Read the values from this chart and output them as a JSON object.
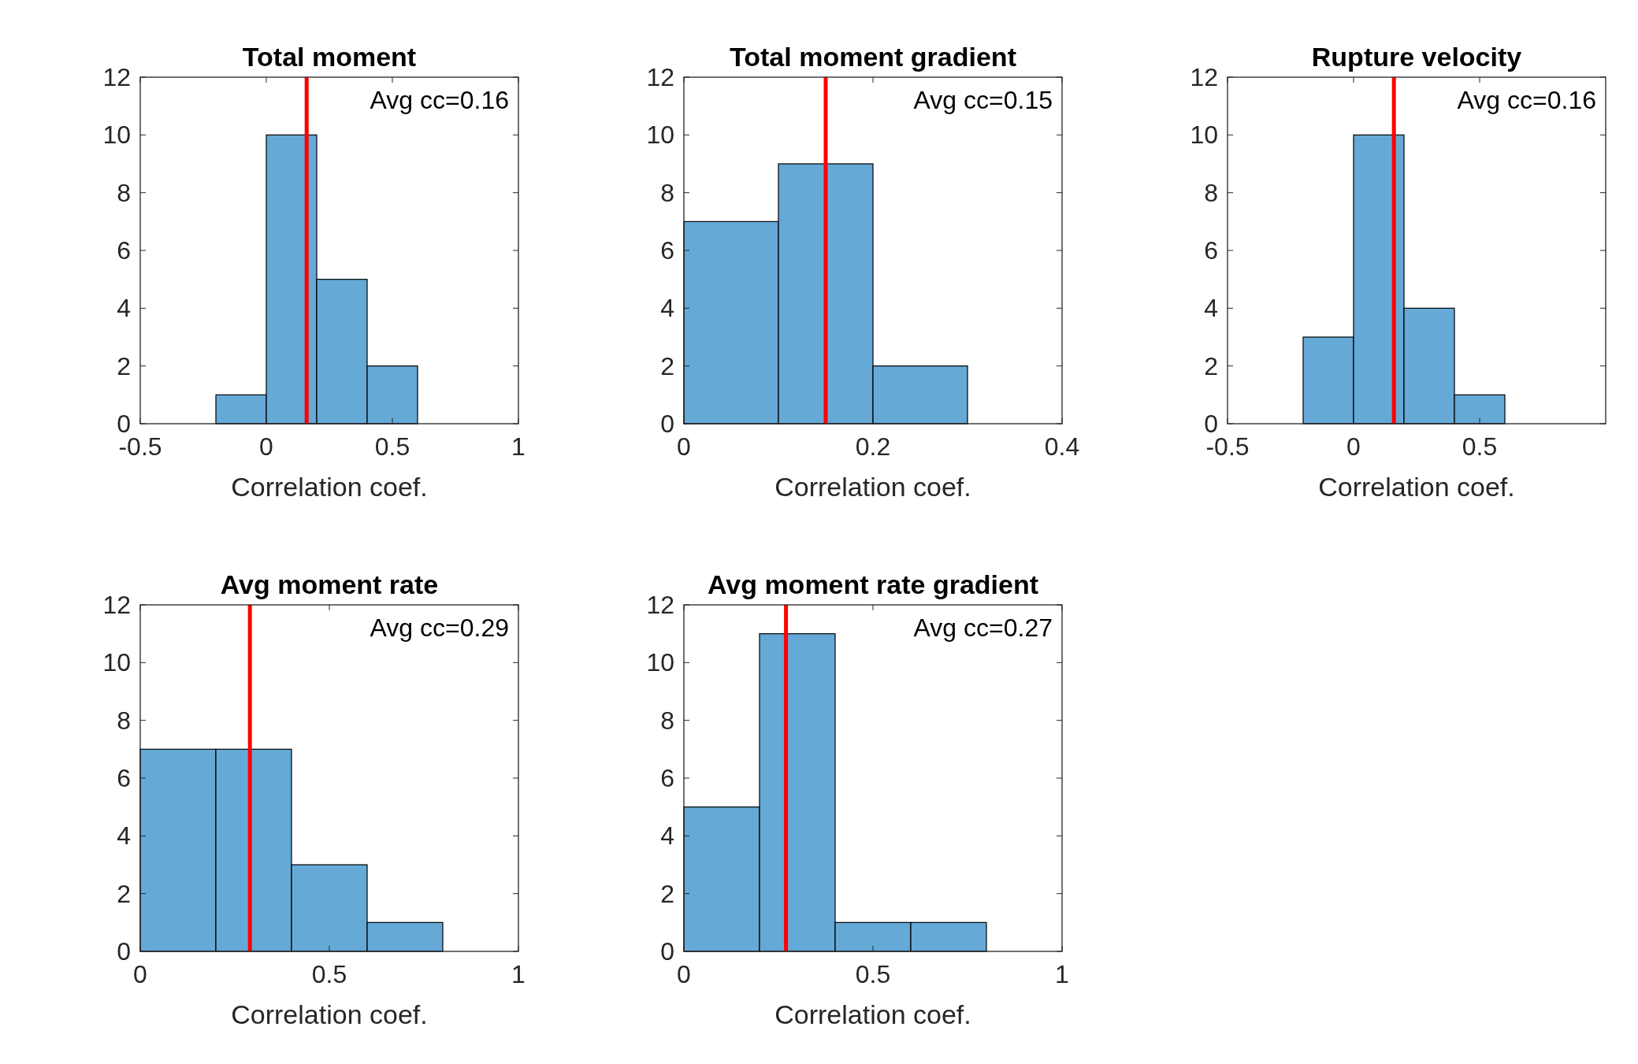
{
  "chart_data": [
    {
      "type": "histogram",
      "title": "Total moment",
      "xlabel": "Correlation coef.",
      "bins": [
        -0.2,
        0,
        0.2,
        0.4,
        0.6
      ],
      "values": [
        1,
        10,
        5,
        2
      ],
      "color": "#65a9d7",
      "xlim": [
        -0.5,
        1
      ],
      "xticks": [
        -0.5,
        0,
        0.5,
        1
      ],
      "ylim": [
        0,
        12
      ],
      "yticks": [
        0,
        2,
        4,
        6,
        8,
        10,
        12
      ],
      "grid": false,
      "ref_lines": [
        {
          "axis": "x",
          "value": 0.16,
          "color": "#ff0000"
        }
      ],
      "annotations": [
        "Avg cc=0.16"
      ]
    },
    {
      "type": "histogram",
      "title": "Total moment gradient",
      "xlabel": "Correlation coef.",
      "bins": [
        0,
        0.1,
        0.2,
        0.3
      ],
      "values": [
        7,
        9,
        2
      ],
      "color": "#65a9d7",
      "xlim": [
        0,
        0.4
      ],
      "xticks": [
        0,
        0.2,
        0.4
      ],
      "ylim": [
        0,
        12
      ],
      "yticks": [
        0,
        2,
        4,
        6,
        8,
        10,
        12
      ],
      "grid": false,
      "ref_lines": [
        {
          "axis": "x",
          "value": 0.15,
          "color": "#ff0000"
        }
      ],
      "annotations": [
        "Avg cc=0.15"
      ]
    },
    {
      "type": "histogram",
      "title": "Rupture velocity",
      "xlabel": "Correlation coef.",
      "bins": [
        -0.2,
        0,
        0.2,
        0.4,
        0.6
      ],
      "values": [
        3,
        10,
        4,
        1
      ],
      "color": "#65a9d7",
      "xlim": [
        -0.5,
        1
      ],
      "xticks": [
        -0.5,
        0,
        0.5
      ],
      "ylim": [
        0,
        12
      ],
      "yticks": [
        0,
        2,
        4,
        6,
        8,
        10,
        12
      ],
      "grid": false,
      "ref_lines": [
        {
          "axis": "x",
          "value": 0.16,
          "color": "#ff0000"
        }
      ],
      "annotations": [
        "Avg cc=0.16"
      ]
    },
    {
      "type": "histogram",
      "title": "Avg moment rate",
      "xlabel": "Correlation coef.",
      "bins": [
        0,
        0.2,
        0.4,
        0.6,
        0.8
      ],
      "values": [
        7,
        7,
        3,
        1
      ],
      "color": "#65a9d7",
      "xlim": [
        0,
        1
      ],
      "xticks": [
        0,
        0.5,
        1
      ],
      "ylim": [
        0,
        12
      ],
      "yticks": [
        0,
        2,
        4,
        6,
        8,
        10,
        12
      ],
      "grid": false,
      "ref_lines": [
        {
          "axis": "x",
          "value": 0.29,
          "color": "#ff0000"
        }
      ],
      "annotations": [
        "Avg cc=0.29"
      ]
    },
    {
      "type": "histogram",
      "title": "Avg moment rate gradient",
      "xlabel": "Correlation coef.",
      "bins": [
        0,
        0.2,
        0.4,
        0.6,
        0.8
      ],
      "values": [
        5,
        11,
        1,
        1
      ],
      "color": "#65a9d7",
      "xlim": [
        0,
        1
      ],
      "xticks": [
        0,
        0.5,
        1
      ],
      "ylim": [
        0,
        12
      ],
      "yticks": [
        0,
        2,
        4,
        6,
        8,
        10,
        12
      ],
      "grid": false,
      "ref_lines": [
        {
          "axis": "x",
          "value": 0.27,
          "color": "#ff0000"
        }
      ],
      "annotations": [
        "Avg cc=0.27"
      ]
    }
  ]
}
